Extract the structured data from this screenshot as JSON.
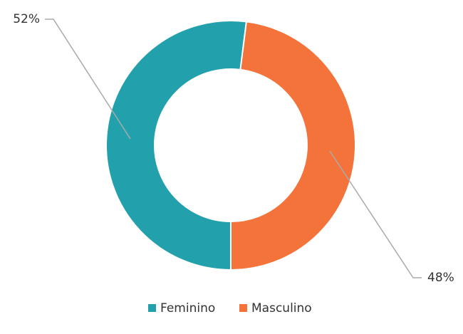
{
  "chart_data": {
    "type": "donut",
    "categories": [
      "Feminino",
      "Masculino"
    ],
    "values": [
      52,
      48
    ],
    "value_labels": [
      "52%",
      "48%"
    ],
    "colors": [
      "#22a1ad",
      "#f3733a"
    ],
    "legend": "bottom"
  }
}
